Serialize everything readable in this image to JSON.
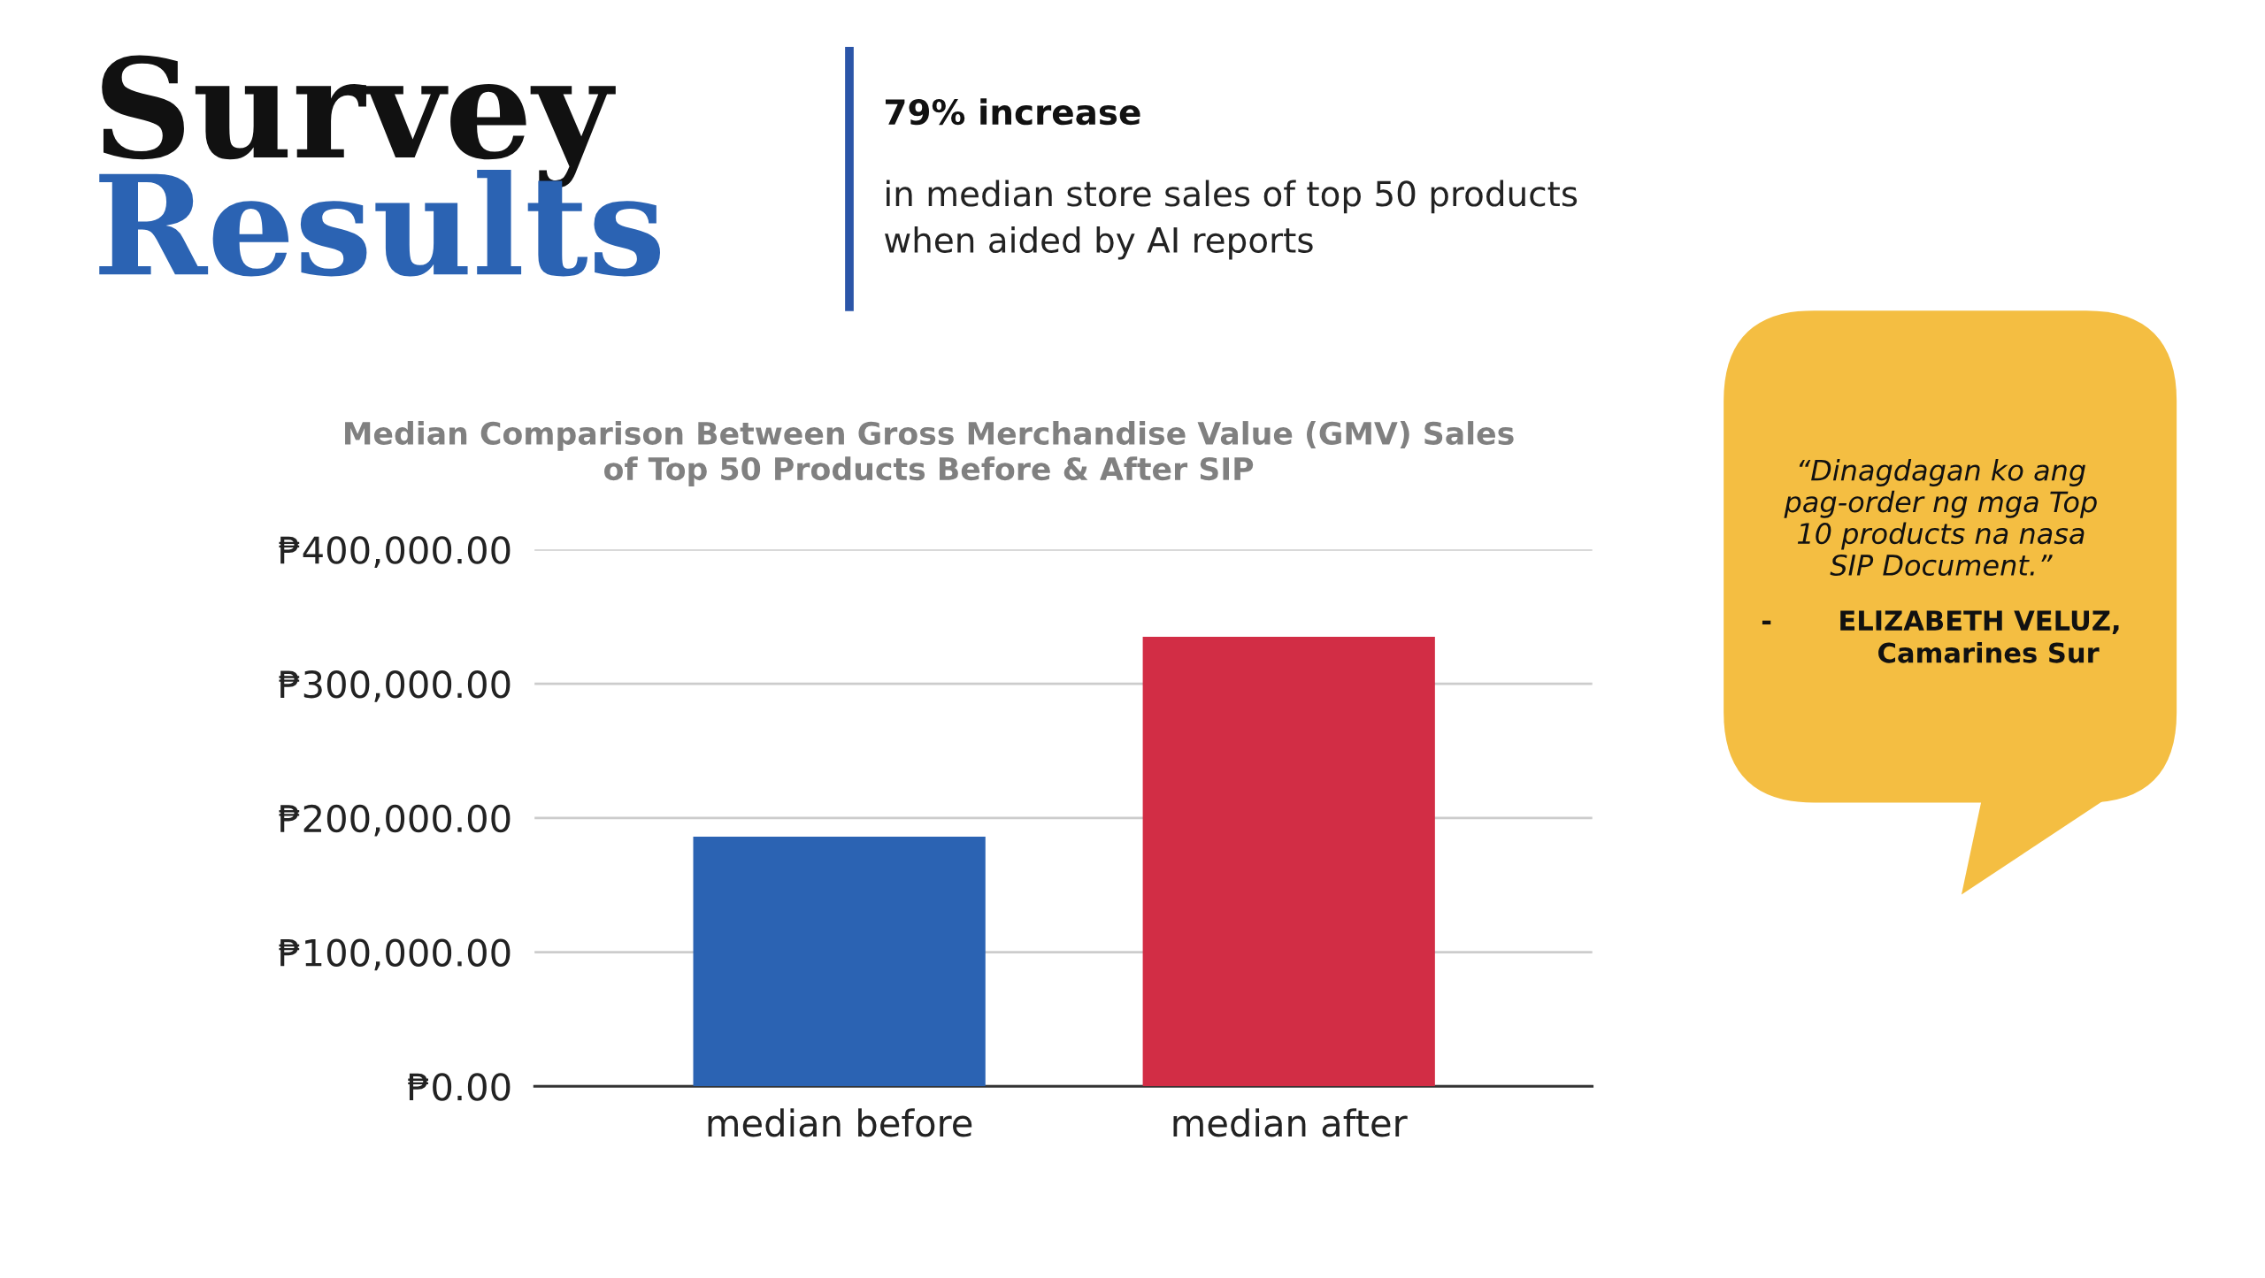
{
  "chart_data": {
    "type": "bar",
    "title": "Median Comparison Between Gross Merchandise Value (GMV) Sales\nof Top 50 Products Before & After SIP",
    "categories": [
      "median before",
      "median after"
    ],
    "values": [
      186000,
      335000
    ],
    "colors": [
      "#2b63b3",
      "#d22d45"
    ],
    "ylim": [
      0,
      400000
    ],
    "yticks": [
      {
        "value": 0,
        "label": "₱0.00"
      },
      {
        "value": 100000,
        "label": "₱100,000.00"
      },
      {
        "value": 200000,
        "label": "₱200,000.00"
      },
      {
        "value": 300000,
        "label": "₱300,000.00"
      },
      {
        "value": 400000,
        "label": "₱400,000.00"
      }
    ],
    "grid": "y",
    "legend": false,
    "annotations": [
      "Survey",
      "Results",
      "79% increase",
      "in median store sales of top 50 products\nwhen aided by AI reports",
      "“Dinagdagan ko ang\npag-order ng mga Top\n10 products na nasa\nSIP Document.”",
      "-       ELIZABETH VELUZ,\n          Camarines Sur"
    ]
  }
}
